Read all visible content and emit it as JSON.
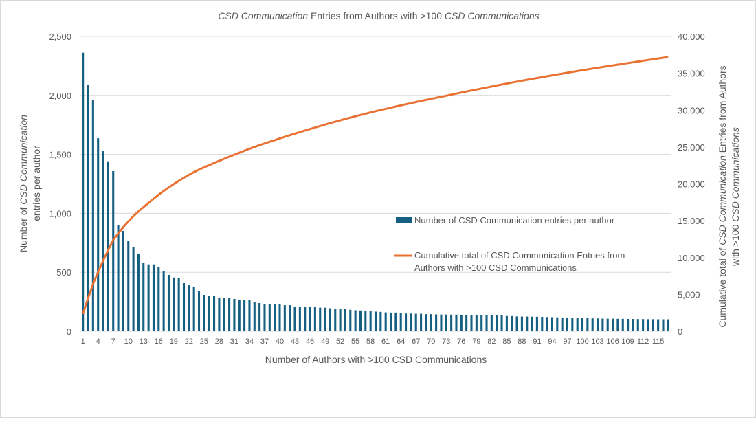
{
  "chart_data": {
    "type": "bar+line",
    "title_parts": [
      {
        "text": "CSD Communication",
        "italic": true
      },
      {
        "text": " Entries from Authors with >100 ",
        "italic": false
      },
      {
        "text": "CSD Communications",
        "italic": true
      }
    ],
    "xlabel": "Number of Authors with >100 CSD Communications",
    "ylabel_left": {
      "line1_parts": [
        {
          "text": "Number of ",
          "italic": false
        },
        {
          "text": "CSD Communication",
          "italic": true
        }
      ],
      "line2": "entries per author"
    },
    "ylabel_right": {
      "line1_parts": [
        {
          "text": "Cumulative total of ",
          "italic": false
        },
        {
          "text": "CSD Communication",
          "italic": true
        },
        {
          "text": " Entries from Authors",
          "italic": false
        }
      ],
      "line2_parts": [
        {
          "text": "with >100 ",
          "italic": false
        },
        {
          "text": "CSD Communications",
          "italic": true
        }
      ]
    },
    "ylim_left": [
      0,
      2500
    ],
    "ylim_right": [
      0,
      40000
    ],
    "yticks_left": [
      "0",
      "500",
      "1,000",
      "1,500",
      "2,000",
      "2,500"
    ],
    "yticks_right": [
      "0",
      "5,000",
      "10,000",
      "15,000",
      "20,000",
      "25,000",
      "30,000",
      "35,000",
      "40,000"
    ],
    "x_tick_step": 3,
    "grid": true,
    "legend_placement": "center-right",
    "series": [
      {
        "name": "Number of CSD Communication  entries per author",
        "type": "bar",
        "axis": "left",
        "color": "#156082",
        "values": [
          2362,
          2088,
          1964,
          1637,
          1527,
          1441,
          1358,
          903,
          851,
          769,
          717,
          653,
          583,
          567,
          567,
          542,
          509,
          478,
          456,
          449,
          408,
          390,
          375,
          338,
          309,
          300,
          297,
          286,
          280,
          280,
          274,
          268,
          268,
          268,
          245,
          239,
          233,
          227,
          227,
          227,
          221,
          221,
          210,
          210,
          210,
          210,
          204,
          200,
          200,
          195,
          190,
          188,
          188,
          182,
          178,
          176,
          172,
          170,
          166,
          164,
          160,
          158,
          158,
          154,
          150,
          150,
          148,
          148,
          145,
          145,
          143,
          142,
          142,
          141,
          141,
          140,
          140,
          138,
          138,
          137,
          137,
          136,
          136,
          135,
          130,
          129,
          126,
          125,
          125,
          124,
          123,
          122,
          121,
          120,
          118,
          117,
          116,
          114,
          113,
          112,
          112,
          110,
          109,
          108,
          107,
          107,
          106,
          106,
          105,
          105,
          104,
          104,
          103,
          103,
          102,
          102,
          102
        ]
      },
      {
        "name": "Cumulative total of  CSD Communication Entries from Authors with >100 CSD Communications",
        "type": "line",
        "axis": "right",
        "color": "#E97132",
        "derived_from": "cumulative sum of bar values"
      }
    ]
  }
}
